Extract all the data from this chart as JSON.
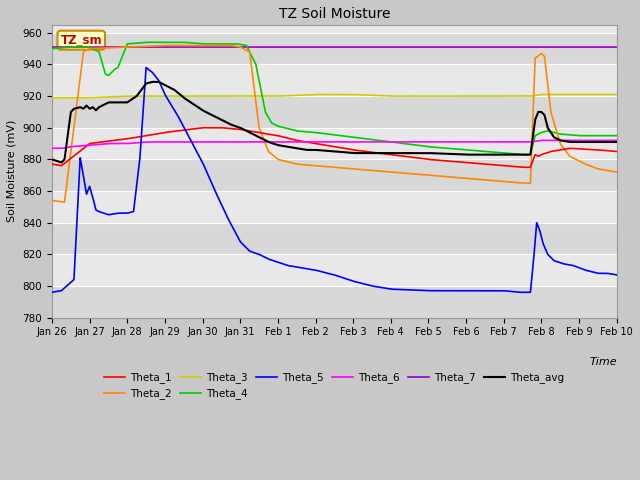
{
  "title": "TZ Soil Moisture",
  "xlabel": "Time",
  "ylabel": "Soil Moisture (mV)",
  "ylim": [
    780,
    965
  ],
  "xlim": [
    0,
    360
  ],
  "yticks": [
    780,
    800,
    820,
    840,
    860,
    880,
    900,
    920,
    940,
    960
  ],
  "xtick_labels": [
    "Jan 26",
    "Jan 27",
    "Jan 28",
    "Jan 29",
    "Jan 30",
    "Jan 31",
    "Feb 1",
    "Feb 2",
    "Feb 3",
    "Feb 4",
    "Feb 5",
    "Feb 6",
    "Feb 7",
    "Feb 8",
    "Feb 9",
    "Feb 10"
  ],
  "xtick_positions": [
    0,
    24,
    48,
    72,
    96,
    120,
    144,
    168,
    192,
    216,
    240,
    264,
    288,
    312,
    336,
    360
  ],
  "fig_bg": "#c8c8c8",
  "plot_bg_light": "#e8e8e8",
  "plot_bg_dark": "#d8d8d8",
  "label_box_color": "#ffffcc",
  "label_box_edge": "#cc8800",
  "label_text": "TZ_sm",
  "label_text_color": "#cc0000",
  "line_colors": {
    "Theta_1": "#ff0000",
    "Theta_2": "#ff8800",
    "Theta_3": "#cccc00",
    "Theta_4": "#00cc00",
    "Theta_5": "#0000ff",
    "Theta_6": "#ff00ff",
    "Theta_7": "#9900cc",
    "Theta_avg": "#000000"
  }
}
